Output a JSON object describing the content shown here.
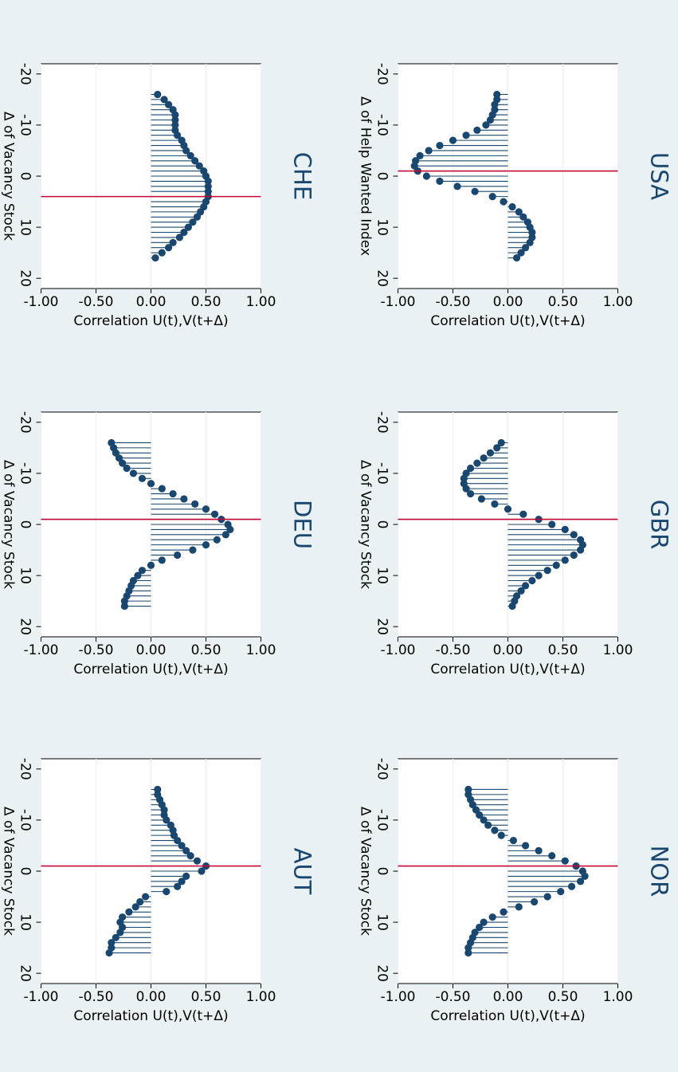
{
  "chart_data": [
    {
      "type": "stem",
      "title": "AUT",
      "xlabel": "Δ of Vacancy Stock",
      "ylabel": "Correlation U(t),V(t+Δ)",
      "xlim": [
        -22,
        22
      ],
      "ylim": [
        -1,
        1
      ],
      "xticks": [
        -20,
        -10,
        0,
        10,
        20
      ],
      "yticks": [
        -1,
        -0.5,
        0,
        0.5,
        1
      ],
      "xtick_labels": [
        "-20",
        "-10",
        "0",
        "10",
        "20"
      ],
      "ytick_labels": [
        "-1.00",
        "-0.50",
        "0.00",
        "0.50",
        "1.00"
      ],
      "refline_x": -1,
      "x": [
        -16,
        -15,
        -14,
        -13,
        -12,
        -11,
        -10,
        -9,
        -8,
        -7,
        -6,
        -5,
        -4,
        -3,
        -2,
        -1,
        0,
        1,
        2,
        3,
        4,
        5,
        6,
        7,
        8,
        9,
        10,
        11,
        12,
        13,
        14,
        15,
        16
      ],
      "values": [
        0.06,
        0.06,
        0.08,
        0.1,
        0.12,
        0.12,
        0.14,
        0.18,
        0.2,
        0.21,
        0.24,
        0.28,
        0.32,
        0.36,
        0.42,
        0.5,
        0.46,
        0.32,
        0.28,
        0.24,
        0.14,
        -0.05,
        -0.1,
        -0.14,
        -0.2,
        -0.26,
        -0.28,
        -0.26,
        -0.28,
        -0.32,
        -0.36,
        -0.36,
        -0.38
      ]
    },
    {
      "type": "stem",
      "title": "DEU",
      "xlabel": "Δ of Vacancy Stock",
      "ylabel": "Correlation U(t),V(t+Δ)",
      "xlim": [
        -22,
        22
      ],
      "ylim": [
        -1,
        1
      ],
      "xticks": [
        -20,
        -10,
        0,
        10,
        20
      ],
      "yticks": [
        -1,
        -0.5,
        0,
        0.5,
        1
      ],
      "xtick_labels": [
        "-20",
        "-10",
        "0",
        "10",
        "20"
      ],
      "ytick_labels": [
        "-1.00",
        "-0.50",
        "0.00",
        "0.50",
        "1.00"
      ],
      "refline_x": -1,
      "x": [
        -16,
        -15,
        -14,
        -13,
        -12,
        -11,
        -10,
        -9,
        -8,
        -7,
        -6,
        -5,
        -4,
        -3,
        -2,
        -1,
        0,
        1,
        2,
        3,
        4,
        5,
        6,
        7,
        8,
        9,
        10,
        11,
        12,
        13,
        14,
        15,
        16
      ],
      "values": [
        -0.36,
        -0.34,
        -0.32,
        -0.29,
        -0.26,
        -0.22,
        -0.16,
        -0.08,
        0,
        0.1,
        0.2,
        0.3,
        0.4,
        0.5,
        0.58,
        0.64,
        0.7,
        0.72,
        0.68,
        0.6,
        0.5,
        0.38,
        0.24,
        0.1,
        0,
        -0.08,
        -0.12,
        -0.16,
        -0.18,
        -0.2,
        -0.22,
        -0.24,
        -0.24
      ]
    },
    {
      "type": "stem",
      "title": "CHE",
      "xlabel": "Δ of Vacancy Stock",
      "ylabel": "Correlation U(t),V(t+Δ)",
      "xlim": [
        -22,
        22
      ],
      "ylim": [
        -1,
        1
      ],
      "xticks": [
        -20,
        -10,
        0,
        10,
        20
      ],
      "yticks": [
        -1,
        -0.5,
        0,
        0.5,
        1
      ],
      "xtick_labels": [
        "-20",
        "-10",
        "0",
        "10",
        "20"
      ],
      "ytick_labels": [
        "-1.00",
        "-0.50",
        "0.00",
        "0.50",
        "1.00"
      ],
      "refline_x": 4,
      "x": [
        -16,
        -15,
        -14,
        -13,
        -12,
        -11,
        -10,
        -9,
        -8,
        -7,
        -6,
        -5,
        -4,
        -3,
        -2,
        -1,
        0,
        1,
        2,
        3,
        4,
        5,
        6,
        7,
        8,
        9,
        10,
        11,
        12,
        13,
        14,
        15,
        16
      ],
      "values": [
        0.06,
        0.12,
        0.16,
        0.2,
        0.22,
        0.22,
        0.22,
        0.22,
        0.24,
        0.28,
        0.3,
        0.32,
        0.36,
        0.4,
        0.44,
        0.48,
        0.5,
        0.52,
        0.52,
        0.52,
        0.52,
        0.5,
        0.48,
        0.45,
        0.42,
        0.38,
        0.34,
        0.3,
        0.26,
        0.2,
        0.16,
        0.1,
        0.04
      ]
    },
    {
      "type": "stem",
      "title": "NOR",
      "xlabel": "Δ of Vacancy Stock",
      "ylabel": "Correlation U(t),V(t+Δ)",
      "xlim": [
        -22,
        22
      ],
      "ylim": [
        -1,
        1
      ],
      "xticks": [
        -20,
        -10,
        0,
        10,
        20
      ],
      "yticks": [
        -1,
        -0.5,
        0,
        0.5,
        1
      ],
      "xtick_labels": [
        "-20",
        "-10",
        "0",
        "10",
        "20"
      ],
      "ytick_labels": [
        "-1.00",
        "-0.50",
        "0.00",
        "0.50",
        "1.00"
      ],
      "refline_x": -1,
      "x": [
        -16,
        -15,
        -14,
        -13,
        -12,
        -11,
        -10,
        -9,
        -8,
        -7,
        -6,
        -5,
        -4,
        -3,
        -2,
        -1,
        0,
        1,
        2,
        3,
        4,
        5,
        6,
        7,
        8,
        9,
        10,
        11,
        12,
        13,
        14,
        15,
        16
      ],
      "values": [
        -0.36,
        -0.36,
        -0.34,
        -0.32,
        -0.29,
        -0.26,
        -0.22,
        -0.18,
        -0.12,
        -0.06,
        0.05,
        0.16,
        0.28,
        0.4,
        0.52,
        0.62,
        0.68,
        0.7,
        0.66,
        0.58,
        0.48,
        0.36,
        0.24,
        0.1,
        -0.04,
        -0.14,
        -0.22,
        -0.26,
        -0.3,
        -0.32,
        -0.34,
        -0.36,
        -0.36
      ]
    },
    {
      "type": "stem",
      "title": "GBR",
      "xlabel": "Δ of Vacancy Stock",
      "ylabel": "Correlation U(t),V(t+Δ)",
      "xlim": [
        -22,
        22
      ],
      "ylim": [
        -1,
        1
      ],
      "xticks": [
        -20,
        -10,
        0,
        10,
        20
      ],
      "yticks": [
        -1,
        -0.5,
        0,
        0.5,
        1
      ],
      "xtick_labels": [
        "-20",
        "-10",
        "0",
        "10",
        "20"
      ],
      "ytick_labels": [
        "-1.00",
        "-0.50",
        "0.00",
        "0.50",
        "1.00"
      ],
      "refline_x": -1,
      "x": [
        -16,
        -15,
        -14,
        -13,
        -12,
        -11,
        -10,
        -9,
        -8,
        -7,
        -6,
        -5,
        -4,
        -3,
        -2,
        -1,
        0,
        1,
        2,
        3,
        4,
        5,
        6,
        7,
        8,
        9,
        10,
        11,
        12,
        13,
        14,
        15,
        16
      ],
      "values": [
        -0.06,
        -0.1,
        -0.16,
        -0.22,
        -0.28,
        -0.34,
        -0.38,
        -0.4,
        -0.4,
        -0.38,
        -0.34,
        -0.24,
        -0.12,
        0,
        0.14,
        0.28,
        0.4,
        0.52,
        0.6,
        0.66,
        0.68,
        0.66,
        0.6,
        0.52,
        0.44,
        0.36,
        0.28,
        0.22,
        0.16,
        0.12,
        0.08,
        0.06,
        0.04
      ]
    },
    {
      "type": "stem",
      "title": "USA",
      "xlabel": "Δ of Help Wanted Index",
      "ylabel": "Correlation U(t),V(t+Δ)",
      "xlim": [
        -22,
        22
      ],
      "ylim": [
        -1,
        1
      ],
      "xticks": [
        -20,
        -10,
        0,
        10,
        20
      ],
      "yticks": [
        -1,
        -0.5,
        0,
        0.5,
        1
      ],
      "xtick_labels": [
        "-20",
        "-10",
        "0",
        "10",
        "20"
      ],
      "ytick_labels": [
        "-1.00",
        "-0.50",
        "0.00",
        "0.50",
        "1.00"
      ],
      "refline_x": -1,
      "x": [
        -16,
        -15,
        -14,
        -13,
        -12,
        -11,
        -10,
        -9,
        -8,
        -7,
        -6,
        -5,
        -4,
        -3,
        -2,
        -1,
        0,
        1,
        2,
        3,
        4,
        5,
        6,
        7,
        8,
        9,
        10,
        11,
        12,
        13,
        14,
        15,
        16
      ],
      "values": [
        -0.1,
        -0.1,
        -0.12,
        -0.12,
        -0.14,
        -0.16,
        -0.2,
        -0.28,
        -0.38,
        -0.5,
        -0.62,
        -0.72,
        -0.8,
        -0.84,
        -0.85,
        -0.82,
        -0.74,
        -0.62,
        -0.46,
        -0.3,
        -0.14,
        -0.04,
        0.04,
        0.1,
        0.14,
        0.18,
        0.2,
        0.22,
        0.22,
        0.2,
        0.16,
        0.12,
        0.08
      ]
    }
  ],
  "colors": {
    "marker": "#1a476f",
    "refline": "#c10534",
    "background": "#eaf1f4",
    "plot_bg": "#ffffff",
    "grid": "#eaf1f4",
    "text": "#1a476f"
  }
}
